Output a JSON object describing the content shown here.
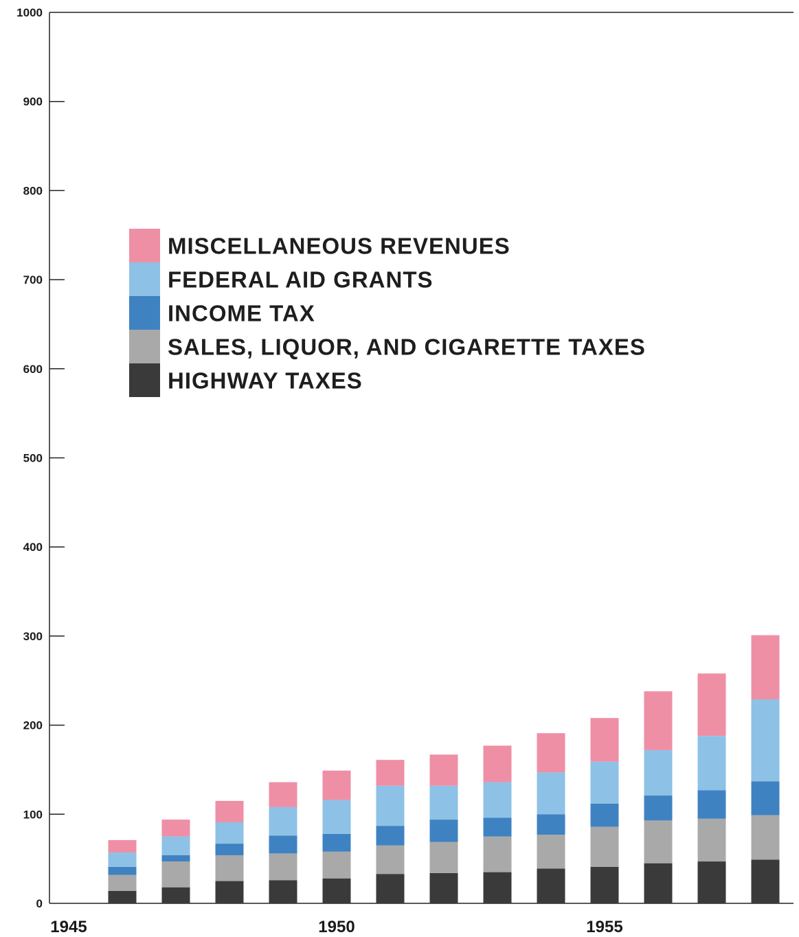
{
  "chart_data": {
    "type": "bar",
    "stacked": true,
    "x": [
      1946,
      1947,
      1948,
      1949,
      1950,
      1951,
      1952,
      1953,
      1954,
      1955,
      1956,
      1957,
      1958
    ],
    "ylim": [
      0,
      1000
    ],
    "xlim": [
      1945,
      1958.5
    ],
    "yticks": [
      "0",
      "100",
      "200",
      "300",
      "400",
      "500",
      "600",
      "700",
      "800",
      "900",
      "1000"
    ],
    "xticks": [
      "1945",
      "1950",
      "1955"
    ],
    "legend_position": "upper-left",
    "series": [
      {
        "name": "HIGHWAY TAXES",
        "color": "#3a3a3a",
        "values": [
          14,
          18,
          25,
          26,
          28,
          33,
          34,
          35,
          39,
          41,
          45,
          47,
          49
        ]
      },
      {
        "name": "SALES, LIQUOR, AND CIGARETTE TAXES",
        "color": "#a9a9a9",
        "values": [
          18,
          29,
          29,
          30,
          30,
          32,
          35,
          40,
          38,
          45,
          48,
          48,
          50
        ]
      },
      {
        "name": "INCOME TAX",
        "color": "#3f82c2",
        "values": [
          9,
          7,
          13,
          20,
          20,
          22,
          25,
          21,
          23,
          26,
          28,
          32,
          38
        ]
      },
      {
        "name": "FEDERAL AID GRANTS",
        "color": "#8ec1e6",
        "values": [
          16,
          21,
          24,
          32,
          38,
          45,
          38,
          40,
          47,
          47,
          51,
          61,
          92
        ]
      },
      {
        "name": "MISCELLANEOUS REVENUES",
        "color": "#ee8fa6",
        "values": [
          14,
          19,
          24,
          28,
          33,
          29,
          35,
          41,
          44,
          49,
          66,
          70,
          72
        ]
      }
    ],
    "legend_order": [
      "MISCELLANEOUS REVENUES",
      "FEDERAL AID GRANTS",
      "INCOME TAX",
      "SALES, LIQUOR, AND CIGARETTE TAXES",
      "HIGHWAY TAXES"
    ]
  }
}
